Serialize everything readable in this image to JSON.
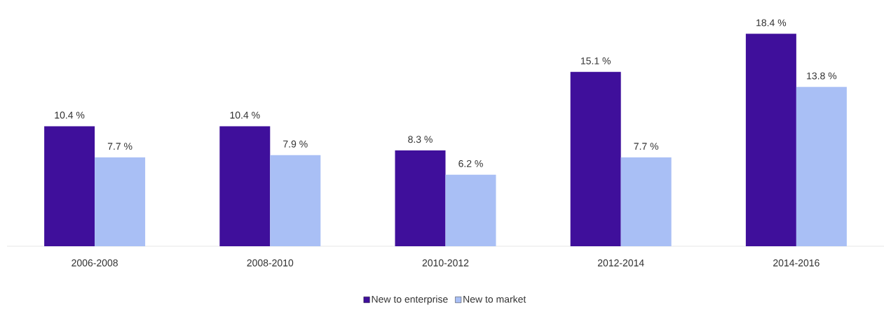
{
  "chart_data": {
    "type": "bar",
    "categories": [
      "2006-2008",
      "2008-2010",
      "2010-2012",
      "2012-2014",
      "2014-2016"
    ],
    "series": [
      {
        "name": "New to enterprise",
        "color": "#3f0f9b",
        "values": [
          10.4,
          10.4,
          8.3,
          15.1,
          18.4
        ],
        "value_labels": [
          "10.4 %",
          "10.4 %",
          "8.3 %",
          "15.1 %",
          "18.4 %"
        ]
      },
      {
        "name": "New to market",
        "color": "#a9bff5",
        "values": [
          7.7,
          7.9,
          6.2,
          7.7,
          13.8
        ],
        "value_labels": [
          "7.7 %",
          "7.9 %",
          "6.2 %",
          "7.7 %",
          "13.8 %"
        ]
      }
    ],
    "legend": "bottom"
  }
}
